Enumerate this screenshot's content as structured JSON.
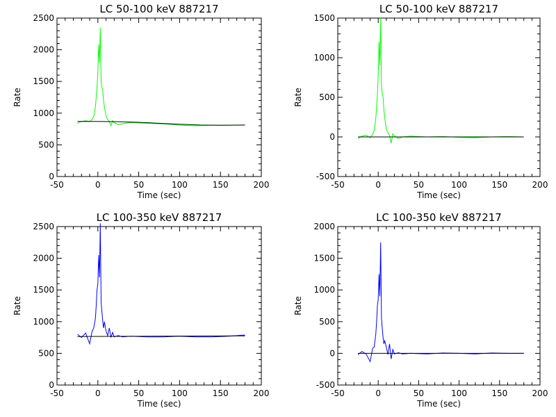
{
  "chart_data": [
    {
      "type": "line",
      "title": "LC 50-100 keV  887217",
      "xlabel": "Time (sec)",
      "ylabel": "Rate",
      "xlim": [
        -50,
        200
      ],
      "ylim": [
        0,
        2500
      ],
      "xticks": [
        -50,
        0,
        50,
        100,
        150,
        200
      ],
      "yticks": [
        0,
        500,
        1000,
        1500,
        2000,
        2500
      ],
      "color": "#00ff00",
      "series": [
        {
          "x": [
            -25,
            -20,
            -15,
            -10,
            -7,
            -5,
            -3,
            -2,
            -1,
            0,
            1,
            2,
            3,
            4,
            5,
            6,
            7,
            8,
            10,
            12,
            14,
            16,
            18,
            20,
            25,
            30,
            40,
            60,
            80,
            100,
            120,
            140,
            160,
            180
          ],
          "y": [
            840,
            870,
            880,
            870,
            900,
            950,
            1100,
            1250,
            1400,
            1650,
            2080,
            1800,
            2350,
            1500,
            1400,
            1350,
            1200,
            1100,
            950,
            900,
            870,
            800,
            880,
            850,
            820,
            830,
            850,
            840,
            830,
            810,
            800,
            810,
            810,
            810
          ]
        },
        {
          "x": [
            -25,
            0,
            25,
            50,
            75,
            100,
            125,
            150,
            180
          ],
          "y": [
            870,
            870,
            865,
            855,
            840,
            825,
            812,
            808,
            812
          ]
        }
      ]
    },
    {
      "type": "line",
      "title": "LC 50-100 keV  887217",
      "xlabel": "Time (sec)",
      "ylabel": "Rate",
      "xlim": [
        -50,
        200
      ],
      "ylim": [
        -500,
        1500
      ],
      "xticks": [
        -50,
        0,
        50,
        100,
        150,
        200
      ],
      "yticks": [
        -500,
        0,
        500,
        1000,
        1500
      ],
      "color": "#00ff00",
      "series": [
        {
          "x": [
            -25,
            -20,
            -15,
            -10,
            -7,
            -5,
            -3,
            -2,
            -1,
            0,
            1,
            2,
            3,
            4,
            5,
            6,
            7,
            8,
            10,
            12,
            14,
            16,
            18,
            20,
            25,
            30,
            40,
            60,
            80,
            100,
            120,
            140,
            160,
            180
          ],
          "y": [
            -20,
            10,
            20,
            -10,
            30,
            80,
            230,
            380,
            530,
            780,
            1200,
            900,
            1500,
            650,
            550,
            500,
            350,
            250,
            100,
            50,
            20,
            -80,
            40,
            10,
            -20,
            0,
            10,
            0,
            5,
            -5,
            -10,
            0,
            5,
            0
          ]
        },
        {
          "x": [
            -25,
            180
          ],
          "y": [
            0,
            0
          ]
        }
      ]
    },
    {
      "type": "line",
      "title": "LC 100-350 keV  887217",
      "xlabel": "Time (sec)",
      "ylabel": "Rate",
      "xlim": [
        -50,
        200
      ],
      "ylim": [
        0,
        2500
      ],
      "xticks": [
        -50,
        0,
        50,
        100,
        150,
        200
      ],
      "yticks": [
        0,
        500,
        1000,
        1500,
        2000,
        2500
      ],
      "color": "#0000ff",
      "series": [
        {
          "x": [
            -25,
            -20,
            -15,
            -10,
            -7,
            -5,
            -3,
            -2,
            -1,
            0,
            1,
            2,
            3,
            4,
            5,
            6,
            7,
            8,
            10,
            12,
            14,
            16,
            18,
            20,
            25,
            30,
            40,
            60,
            80,
            100,
            120,
            140,
            160,
            180
          ],
          "y": [
            800,
            750,
            820,
            650,
            850,
            900,
            1050,
            1250,
            1500,
            1600,
            2050,
            1700,
            2550,
            1300,
            1150,
            1000,
            900,
            1000,
            850,
            780,
            900,
            750,
            830,
            760,
            780,
            760,
            770,
            760,
            760,
            770,
            760,
            760,
            770,
            790
          ]
        },
        {
          "x": [
            -25,
            180
          ],
          "y": [
            765,
            775
          ]
        }
      ]
    },
    {
      "type": "line",
      "title": "LC 100-350 keV  887217",
      "xlabel": "Time (sec)",
      "ylabel": "Rate",
      "xlim": [
        -50,
        200
      ],
      "ylim": [
        -500,
        2000
      ],
      "xticks": [
        -50,
        0,
        50,
        100,
        150,
        200
      ],
      "yticks": [
        -500,
        0,
        500,
        1000,
        1500,
        2000
      ],
      "color": "#0000ff",
      "series": [
        {
          "x": [
            -25,
            -20,
            -15,
            -10,
            -7,
            -5,
            -3,
            -2,
            -1,
            0,
            1,
            2,
            3,
            4,
            5,
            6,
            7,
            8,
            10,
            12,
            14,
            16,
            18,
            20,
            25,
            30,
            40,
            60,
            80,
            100,
            120,
            140,
            160,
            180
          ],
          "y": [
            -20,
            30,
            -10,
            -130,
            80,
            100,
            300,
            500,
            750,
            850,
            1250,
            900,
            1750,
            550,
            400,
            250,
            150,
            200,
            100,
            -20,
            150,
            -90,
            60,
            -10,
            10,
            -10,
            0,
            -10,
            5,
            0,
            -10,
            5,
            0,
            0
          ]
        },
        {
          "x": [
            -25,
            180
          ],
          "y": [
            0,
            0
          ]
        }
      ]
    }
  ]
}
